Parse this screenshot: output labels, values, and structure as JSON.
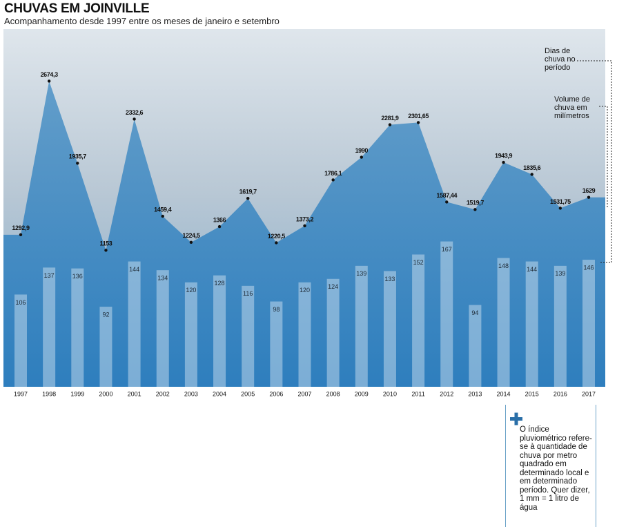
{
  "chart_data": {
    "type": "area-bar",
    "title": "CHUVAS EM JOINVILLE",
    "subtitle": "Acompanhamento desde 1997 entre os meses de janeiro e setembro",
    "categories": [
      "1997",
      "1998",
      "1999",
      "2000",
      "2001",
      "2002",
      "2003",
      "2004",
      "2005",
      "2006",
      "2007",
      "2008",
      "2009",
      "2010",
      "2011",
      "2012",
      "2013",
      "2014",
      "2015",
      "2016",
      "2017"
    ],
    "series": [
      {
        "name": "Volume de chuva em milímetros",
        "color": "#3b86bf",
        "values": [
          1292.9,
          2674.3,
          1935.7,
          1153,
          2332.6,
          1459.4,
          1224.5,
          1366,
          1619.7,
          1220.5,
          1373.2,
          1786.1,
          1990,
          2281.9,
          2301.65,
          1587.44,
          1519.7,
          1943.9,
          1835.6,
          1531.75,
          1629
        ],
        "value_labels": [
          "1292,9",
          "2674,3",
          "1935,7",
          "1153",
          "2332,6",
          "1459,4",
          "1224,5",
          "1366",
          "1619,7",
          "1220,5",
          "1373,2",
          "1786,1",
          "1990",
          "2281,9",
          "2301,65",
          "1587,44",
          "1519,7",
          "1943,9",
          "1835,6",
          "1531,75",
          "1629"
        ]
      },
      {
        "name": "Dias de chuva no período",
        "color": "#dce9f3",
        "values": [
          106,
          137,
          136,
          92,
          144,
          134,
          120,
          128,
          116,
          98,
          120,
          124,
          139,
          133,
          152,
          167,
          94,
          148,
          144,
          139,
          146
        ]
      }
    ],
    "note": "O índice pluviométrico refere-se à quantidade de chuva por metro quadrado em determinado local e em determinado período. Quer dizer, 1 mm = 1 litro de água"
  }
}
